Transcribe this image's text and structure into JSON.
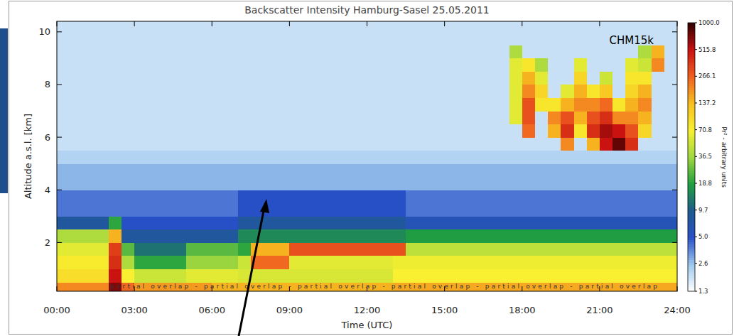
{
  "chart_data": {
    "type": "heatmap",
    "title": "Backscatter Intensity Hamburg-Sasel 25.05.2011",
    "x_label": "Time (UTC)",
    "y_label": "Altitude a.s.l. [km]",
    "xlim": [
      0,
      24
    ],
    "ylim": [
      0.15,
      10.4
    ],
    "xticks": [
      {
        "value": 0,
        "label": "00:00"
      },
      {
        "value": 3,
        "label": "03:00"
      },
      {
        "value": 6,
        "label": "06:00"
      },
      {
        "value": 9,
        "label": "09:00"
      },
      {
        "value": 12,
        "label": "12:00"
      },
      {
        "value": 15,
        "label": "15:00"
      },
      {
        "value": 18,
        "label": "18:00"
      },
      {
        "value": 21,
        "label": "21:00"
      },
      {
        "value": 24,
        "label": "24:00"
      }
    ],
    "yticks": [
      2,
      4,
      6,
      8,
      10
    ],
    "annotations": [
      "CHM15k",
      "partial overlap  -  partial overlap  -  partial overlap  -  partial overlap  -  partial overlap  -  partial overlap"
    ],
    "colorbar": {
      "range": [
        1.3,
        1000
      ],
      "label": "Pr² - arbitrary units",
      "ticks": [
        {
          "value": 1000,
          "label": "1000.0"
        },
        515.8,
        266.1,
        137.2,
        70.8,
        36.5,
        18.8,
        9.7,
        {
          "value": 5,
          "label": "5.0"
        },
        2.6,
        1.3
      ]
    },
    "x_bins": [
      0,
      0.5,
      1,
      1.5,
      2,
      2.5,
      3,
      3.5,
      4,
      4.5,
      5,
      5.5,
      6,
      6.5,
      7,
      7.5,
      8,
      8.5,
      9,
      9.5,
      10,
      10.5,
      11,
      11.5,
      12,
      12.5,
      13,
      13.5,
      14,
      14.5,
      15,
      15.5,
      16,
      16.5,
      17,
      17.5,
      18,
      18.5,
      19,
      19.5,
      20,
      20.5,
      21,
      21.5,
      22,
      22.5,
      23,
      23.5,
      24
    ],
    "y_bins": [
      0.15,
      0.5,
      1,
      1.5,
      2,
      2.5,
      3,
      4,
      5,
      5.5,
      6,
      6.5,
      7,
      7.5,
      8,
      8.5,
      9,
      9.5,
      10.4
    ],
    "cells": [
      [
        200,
        200,
        200,
        200,
        700,
        250,
        180,
        180,
        180,
        180,
        180,
        180,
        150,
        150,
        150,
        150,
        150,
        150,
        150,
        150,
        150,
        150,
        150,
        150,
        150,
        150,
        160,
        160,
        160,
        160,
        160,
        160,
        160,
        160,
        160,
        160,
        160,
        160,
        160,
        160,
        160,
        160,
        160,
        160,
        160,
        160,
        160,
        160
      ],
      [
        90,
        90,
        90,
        90,
        500,
        70,
        50,
        50,
        50,
        50,
        60,
        60,
        60,
        60,
        55,
        55,
        55,
        55,
        55,
        55,
        55,
        55,
        55,
        55,
        55,
        55,
        70,
        70,
        70,
        70,
        70,
        70,
        70,
        70,
        70,
        70,
        70,
        70,
        70,
        70,
        70,
        70,
        70,
        70,
        70,
        70,
        70,
        70
      ],
      [
        75,
        75,
        75,
        75,
        400,
        40,
        20,
        20,
        20,
        20,
        35,
        35,
        35,
        35,
        50,
        250,
        250,
        250,
        60,
        60,
        60,
        60,
        60,
        60,
        60,
        60,
        65,
        65,
        65,
        65,
        65,
        65,
        65,
        65,
        65,
        65,
        65,
        65,
        65,
        65,
        65,
        65,
        65,
        65,
        65,
        65,
        65,
        65
      ],
      [
        60,
        60,
        60,
        60,
        350,
        25,
        12,
        12,
        12,
        12,
        25,
        25,
        25,
        25,
        20,
        150,
        150,
        150,
        300,
        300,
        300,
        300,
        300,
        300,
        300,
        300,
        300,
        45,
        45,
        45,
        45,
        45,
        45,
        45,
        45,
        45,
        45,
        45,
        45,
        45,
        45,
        45,
        45,
        45,
        45,
        45,
        45,
        45
      ],
      [
        40,
        40,
        40,
        40,
        150,
        8,
        8,
        8,
        8,
        8,
        8,
        8,
        8,
        8,
        15,
        15,
        15,
        15,
        15,
        15,
        15,
        15,
        15,
        15,
        15,
        15,
        15,
        18,
        18,
        18,
        18,
        18,
        18,
        18,
        18,
        18,
        18,
        18,
        18,
        18,
        18,
        18,
        18,
        18,
        18,
        18,
        18,
        18
      ],
      [
        8,
        8,
        8,
        8,
        20,
        5,
        5,
        5,
        5,
        5,
        5,
        5,
        5,
        5,
        8,
        8,
        8,
        8,
        8,
        8,
        8,
        8,
        8,
        8,
        8,
        8,
        8,
        6,
        6,
        6,
        6,
        6,
        6,
        6,
        6,
        6,
        6,
        6,
        6,
        6,
        6,
        6,
        6,
        6,
        6,
        6,
        6,
        6
      ],
      [
        4,
        4,
        4,
        4,
        4,
        4,
        4,
        4,
        4,
        4,
        4,
        4,
        4,
        4,
        5,
        5,
        5,
        5,
        5,
        5,
        5,
        5,
        5,
        5,
        5,
        5,
        5,
        4,
        4,
        4,
        4,
        4,
        4,
        4,
        4,
        4,
        4,
        4,
        4,
        4,
        4,
        4,
        4,
        4,
        4,
        4,
        4,
        4
      ],
      [
        2.8,
        2.8,
        2.8,
        2.8,
        2.8,
        2.8,
        2.8,
        2.8,
        2.8,
        2.8,
        2.8,
        2.8,
        2.8,
        2.8,
        2.8,
        2.8,
        2.8,
        2.8,
        2.8,
        2.8,
        2.8,
        2.8,
        2.8,
        2.8,
        2.8,
        2.8,
        2.8,
        2.8,
        2.8,
        2.8,
        2.8,
        2.8,
        2.8,
        2.8,
        2.8,
        2.8,
        2.8,
        2.8,
        2.8,
        2.8,
        2.8,
        2.8,
        2.8,
        2.8,
        2.8,
        2.8,
        2.8,
        2.8
      ],
      [
        2.2,
        2.2,
        2.2,
        2.2,
        2.2,
        2.2,
        2.2,
        2.2,
        2.2,
        2.2,
        2.2,
        2.2,
        2.2,
        2.2,
        2.2,
        2.2,
        2.2,
        2.2,
        2.2,
        2.2,
        2.2,
        2.2,
        2.2,
        2.2,
        2.2,
        2.2,
        2.2,
        2.2,
        2.2,
        2.2,
        2.2,
        2.2,
        2.2,
        2.2,
        2.2,
        2.2,
        2.2,
        2.2,
        2.2,
        2.2,
        2.2,
        2.2,
        2.2,
        2.2,
        2.2,
        2.2,
        2.2,
        2.2
      ],
      [
        1.9,
        1.9,
        1.9,
        1.9,
        1.9,
        1.9,
        1.9,
        1.9,
        1.9,
        1.9,
        1.9,
        1.9,
        1.9,
        1.9,
        1.9,
        1.9,
        1.9,
        1.9,
        1.9,
        1.9,
        1.9,
        1.9,
        1.9,
        1.9,
        1.9,
        1.9,
        1.9,
        1.9,
        1.9,
        1.9,
        1.9,
        1.9,
        1.9,
        1.9,
        1.9,
        1.9,
        1.9,
        1.9,
        1.9,
        200,
        1.9,
        150,
        500,
        800,
        400,
        1.9,
        1.9,
        1.9
      ],
      [
        1.9,
        1.9,
        1.9,
        1.9,
        1.9,
        1.9,
        1.9,
        1.9,
        1.9,
        1.9,
        1.9,
        1.9,
        1.9,
        1.9,
        1.9,
        1.9,
        1.9,
        1.9,
        1.9,
        1.9,
        1.9,
        1.9,
        1.9,
        1.9,
        1.9,
        1.9,
        1.9,
        1.9,
        1.9,
        1.9,
        1.9,
        1.9,
        1.9,
        1.9,
        1.9,
        1.9,
        250,
        1.9,
        150,
        400,
        80,
        400,
        600,
        500,
        300,
        100,
        1.9,
        1.9
      ],
      [
        1.9,
        1.9,
        1.9,
        1.9,
        1.9,
        1.9,
        1.9,
        1.9,
        1.9,
        1.9,
        1.9,
        1.9,
        1.9,
        1.9,
        1.9,
        1.9,
        1.9,
        1.9,
        1.9,
        1.9,
        1.9,
        1.9,
        1.9,
        1.9,
        1.9,
        1.9,
        1.9,
        1.9,
        1.9,
        1.9,
        1.9,
        1.9,
        1.9,
        1.9,
        1.9,
        60,
        300,
        1.9,
        200,
        300,
        150,
        300,
        400,
        200,
        200,
        150,
        1.9,
        1.9
      ],
      [
        1.9,
        1.9,
        1.9,
        1.9,
        1.9,
        1.9,
        1.9,
        1.9,
        1.9,
        1.9,
        1.9,
        1.9,
        1.9,
        1.9,
        1.9,
        1.9,
        1.9,
        1.9,
        1.9,
        1.9,
        1.9,
        1.9,
        1.9,
        1.9,
        1.9,
        1.9,
        1.9,
        1.9,
        1.9,
        1.9,
        1.9,
        1.9,
        1.9,
        1.9,
        1.9,
        60,
        300,
        80,
        80,
        150,
        200,
        200,
        250,
        80,
        150,
        200,
        1.9,
        1.9
      ],
      [
        1.9,
        1.9,
        1.9,
        1.9,
        1.9,
        1.9,
        1.9,
        1.9,
        1.9,
        1.9,
        1.9,
        1.9,
        1.9,
        1.9,
        1.9,
        1.9,
        1.9,
        1.9,
        1.9,
        1.9,
        1.9,
        1.9,
        1.9,
        1.9,
        1.9,
        1.9,
        1.9,
        1.9,
        1.9,
        1.9,
        1.9,
        1.9,
        1.9,
        1.9,
        1.9,
        60,
        200,
        100,
        1.9,
        60,
        150,
        80,
        120,
        1.9,
        100,
        150,
        1.9,
        1.9
      ],
      [
        1.9,
        1.9,
        1.9,
        1.9,
        1.9,
        1.9,
        1.9,
        1.9,
        1.9,
        1.9,
        1.9,
        1.9,
        1.9,
        1.9,
        1.9,
        1.9,
        1.9,
        1.9,
        1.9,
        1.9,
        1.9,
        1.9,
        1.9,
        1.9,
        1.9,
        1.9,
        1.9,
        1.9,
        1.9,
        1.9,
        1.9,
        1.9,
        1.9,
        1.9,
        1.9,
        60,
        150,
        60,
        1.9,
        1.9,
        100,
        1.9,
        50,
        1.9,
        80,
        80,
        1.9,
        1.9
      ],
      [
        1.9,
        1.9,
        1.9,
        1.9,
        1.9,
        1.9,
        1.9,
        1.9,
        1.9,
        1.9,
        1.9,
        1.9,
        1.9,
        1.9,
        1.9,
        1.9,
        1.9,
        1.9,
        1.9,
        1.9,
        1.9,
        1.9,
        1.9,
        1.9,
        1.9,
        1.9,
        1.9,
        1.9,
        1.9,
        1.9,
        1.9,
        1.9,
        1.9,
        1.9,
        1.9,
        60,
        80,
        40,
        1.9,
        1.9,
        60,
        1.9,
        1.9,
        1.9,
        60,
        50,
        200,
        1.9
      ],
      [
        1.9,
        1.9,
        1.9,
        1.9,
        1.9,
        1.9,
        1.9,
        1.9,
        1.9,
        1.9,
        1.9,
        1.9,
        1.9,
        1.9,
        1.9,
        1.9,
        1.9,
        1.9,
        1.9,
        1.9,
        1.9,
        1.9,
        1.9,
        1.9,
        1.9,
        1.9,
        1.9,
        1.9,
        1.9,
        1.9,
        1.9,
        1.9,
        1.9,
        1.9,
        1.9,
        40,
        1.9,
        1.9,
        1.9,
        1.9,
        1.9,
        1.9,
        1.9,
        1.9,
        1.9,
        40,
        150,
        1.9
      ],
      [
        1.9,
        1.9,
        1.9,
        1.9,
        1.9,
        1.9,
        1.9,
        1.9,
        1.9,
        1.9,
        1.9,
        1.9,
        1.9,
        1.9,
        1.9,
        1.9,
        1.9,
        1.9,
        1.9,
        1.9,
        1.9,
        1.9,
        1.9,
        1.9,
        1.9,
        1.9,
        1.9,
        1.9,
        1.9,
        1.9,
        1.9,
        1.9,
        1.9,
        1.9,
        1.9,
        1.9,
        1.9,
        1.9,
        1.9,
        1.9,
        1.9,
        1.9,
        1.9,
        1.9,
        1.9,
        1.9,
        1.9,
        1.9
      ]
    ]
  }
}
